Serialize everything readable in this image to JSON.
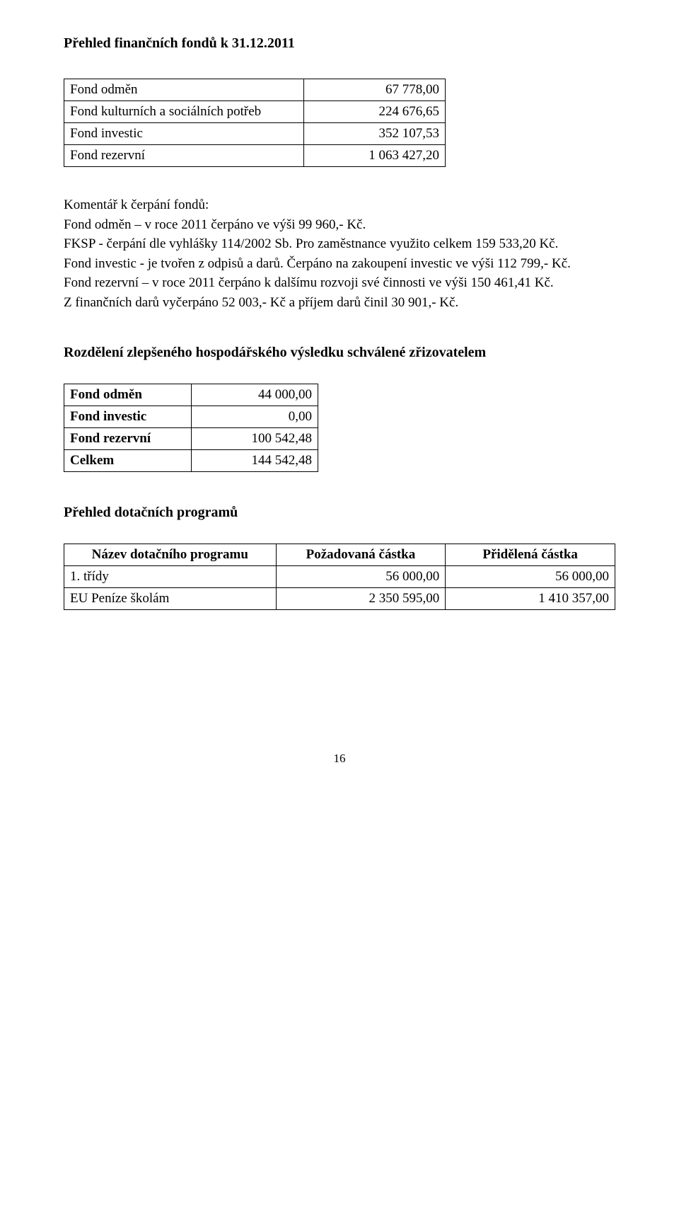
{
  "title1": "Přehled finančních fondů k 31.12.2011",
  "table1": {
    "rows": [
      {
        "label": "Fond odměn",
        "value": "67 778,00"
      },
      {
        "label": "Fond kulturních a sociálních potřeb",
        "value": "224 676,65"
      },
      {
        "label": "Fond investic",
        "value": "352 107,53"
      },
      {
        "label": "Fond rezervní",
        "value": "1 063 427,20"
      }
    ]
  },
  "comment_heading": "Komentář k čerpání fondů:",
  "comment_lines": [
    "Fond odměn – v roce 2011 čerpáno ve výši 99 960,- Kč.",
    "FKSP - čerpání dle vyhlášky 114/2002 Sb. Pro zaměstnance využito celkem 159 533,20 Kč.",
    "Fond investic - je tvořen z odpisů a darů. Čerpáno na zakoupení investic ve výši 112 799,- Kč.",
    "Fond rezervní – v roce 2011 čerpáno k dalšímu rozvoji své činnosti ve výši 150 461,41 Kč.",
    "Z finančních darů vyčerpáno 52 003,- Kč a příjem darů činil 30 901,- Kč."
  ],
  "title2": "Rozdělení zlepšeného hospodářského výsledku schválené zřizovatelem",
  "table2": {
    "rows": [
      {
        "label": "Fond odměn",
        "value": "44 000,00"
      },
      {
        "label": "Fond investic",
        "value": "0,00"
      },
      {
        "label": "Fond rezervní",
        "value": "100 542,48"
      },
      {
        "label": "Celkem",
        "value": "144 542,48"
      }
    ]
  },
  "title3": "Přehled dotačních programů",
  "table3": {
    "headers": [
      "Název dotačního programu",
      "Požadovaná částka",
      "Přidělená částka"
    ],
    "rows": [
      {
        "c1": "1. třídy",
        "c2": "56 000,00",
        "c3": "56 000,00"
      },
      {
        "c1": "EU Peníze školám",
        "c2": "2 350 595,00",
        "c3": "1 410 357,00"
      }
    ]
  },
  "page_number": "16"
}
